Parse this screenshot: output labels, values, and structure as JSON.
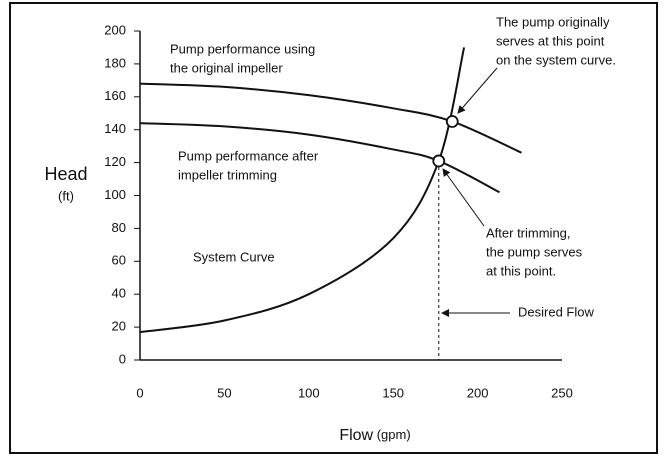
{
  "chart_data": {
    "type": "line",
    "ylabel": "Head",
    "ylabel_unit": "(ft)",
    "xlabel": "Flow",
    "xlabel_unit": "(gpm)",
    "xlim": [
      0,
      250
    ],
    "xticks": [
      0,
      50,
      100,
      150,
      200,
      250
    ],
    "ylim": [
      0,
      200
    ],
    "yticks": [
      0,
      20,
      40,
      60,
      80,
      100,
      120,
      140,
      160,
      180,
      200
    ],
    "color": "#111111",
    "series": [
      {
        "x": [
          0,
          50,
          100,
          150,
          185,
          226
        ],
        "values": [
          168,
          166,
          161,
          153,
          145,
          126
        ]
      },
      {
        "x": [
          0,
          50,
          100,
          150,
          177,
          213
        ],
        "values": [
          144,
          142,
          137,
          128,
          121,
          102
        ]
      },
      {
        "x": [
          0,
          50,
          100,
          150,
          177,
          192
        ],
        "values": [
          17,
          24,
          40,
          74,
          121,
          190
        ]
      }
    ],
    "points": [
      {
        "x": 185,
        "y": 145
      },
      {
        "x": 177,
        "y": 121
      }
    ],
    "annotations": [
      {
        "lines": [
          "Pump performance using",
          "the original impeller"
        ]
      },
      {
        "lines": [
          "Pump performance after",
          "impeller trimming"
        ]
      },
      {
        "lines": [
          "System Curve"
        ]
      },
      {
        "lines": [
          "The pump originally",
          "serves at this point",
          "on the system curve."
        ]
      },
      {
        "lines": [
          "After trimming,",
          "the pump serves",
          "at this point."
        ]
      },
      {
        "lines": [
          "Desired Flow"
        ]
      }
    ]
  }
}
